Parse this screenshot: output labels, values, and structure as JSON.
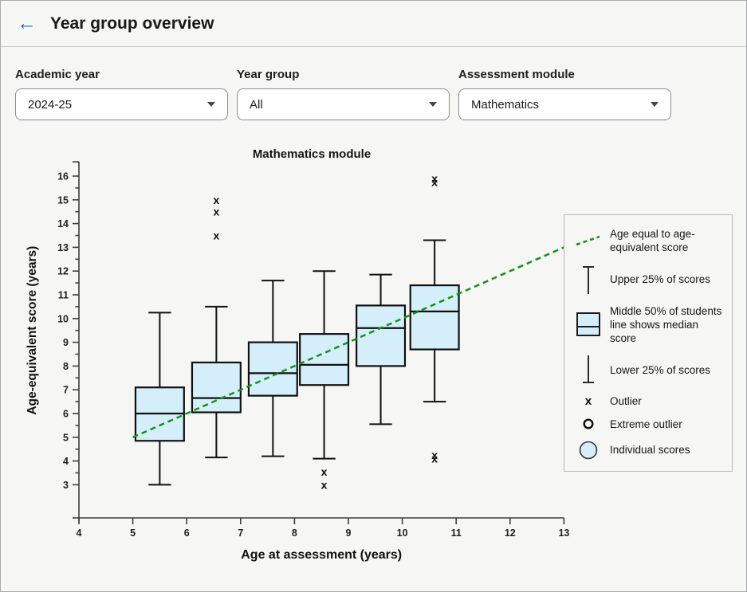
{
  "header": {
    "back_icon": "←",
    "title": "Year group overview"
  },
  "filters": [
    {
      "label": "Academic year",
      "value": "2024-25"
    },
    {
      "label": "Year group",
      "value": "All"
    },
    {
      "label": "Assessment module",
      "value": "Mathematics"
    }
  ],
  "chart_data": {
    "type": "boxplot",
    "title": "Mathematics module",
    "xlabel": "Age at assessment (years)",
    "ylabel": "Age-equivalent score (years)",
    "xlim": [
      4,
      13
    ],
    "ylim": [
      2.5,
      16.6
    ],
    "xticks": [
      4,
      5,
      6,
      7,
      8,
      9,
      10,
      11,
      12,
      13
    ],
    "yticks": [
      3,
      4,
      5,
      6,
      7,
      8,
      9,
      10,
      11,
      12,
      13,
      14,
      15,
      16
    ],
    "y_minor_tick_step": 0.5,
    "grid": false,
    "identity_line": {
      "from": [
        5,
        5
      ],
      "to": [
        13,
        13
      ],
      "color": "#129412",
      "style": "dashed"
    },
    "box_width": 0.9,
    "whisker_cap_width": 0.42,
    "boxes": [
      {
        "x": 5.5,
        "low": 3.0,
        "q1": 4.85,
        "median": 6.0,
        "q3": 7.1,
        "high": 10.25,
        "outliers": []
      },
      {
        "x": 6.55,
        "low": 4.15,
        "q1": 6.05,
        "median": 6.65,
        "q3": 8.15,
        "high": 10.5,
        "outliers": [
          13.5,
          14.5,
          15.0
        ]
      },
      {
        "x": 7.6,
        "low": 4.2,
        "q1": 6.75,
        "median": 7.7,
        "q3": 9.0,
        "high": 11.6,
        "outliers": []
      },
      {
        "x": 8.55,
        "low": 4.1,
        "q1": 7.2,
        "median": 8.05,
        "q3": 9.35,
        "high": 12.0,
        "outliers": [
          3.0,
          3.55
        ]
      },
      {
        "x": 9.6,
        "low": 5.55,
        "q1": 8.0,
        "median": 9.6,
        "q3": 10.55,
        "high": 11.85,
        "outliers": []
      },
      {
        "x": 10.6,
        "low": 6.5,
        "q1": 8.7,
        "median": 10.3,
        "q3": 11.4,
        "high": 13.3,
        "outliers": [
          4.1,
          4.25,
          15.75,
          15.9
        ]
      }
    ],
    "colors": {
      "box_fill": "#d4effa",
      "stroke": "#101010",
      "axis": "#3d3d3d",
      "accent_blue": "#1b6fc0",
      "green": "#129412"
    }
  },
  "legend": {
    "items": [
      {
        "icon": "dashed-line-icon",
        "label": "Age equal to age-equivalent score"
      },
      {
        "icon": "upper-whisker-icon",
        "label": "Upper 25% of scores"
      },
      {
        "icon": "box-icon",
        "label": "Middle 50% of students line shows median score"
      },
      {
        "icon": "lower-whisker-icon",
        "label": "Lower 25% of scores"
      },
      {
        "icon": "outlier-x-icon",
        "label": "Outlier"
      },
      {
        "icon": "extreme-outlier-icon",
        "label": "Extreme outlier"
      },
      {
        "icon": "individual-scores-icon",
        "label": "Individual scores"
      }
    ]
  }
}
